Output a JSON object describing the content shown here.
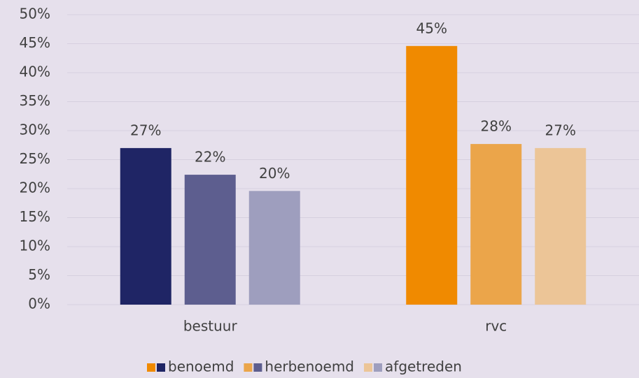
{
  "chart_data": {
    "type": "bar",
    "categories": [
      "bestuur",
      "rvc"
    ],
    "series": [
      {
        "name": "benoemd",
        "colors": [
          "#1f2565",
          "#f08a00"
        ],
        "values": [
          27.0,
          44.6
        ],
        "value_labels": [
          "27%",
          "45%"
        ]
      },
      {
        "name": "herbenoemd",
        "colors": [
          "#5d5e8f",
          "#eba54a"
        ],
        "values": [
          22.4,
          27.7
        ],
        "value_labels": [
          "22%",
          "28%"
        ]
      },
      {
        "name": "afgetreden",
        "colors": [
          "#9e9ebe",
          "#ecc597"
        ],
        "values": [
          19.6,
          27.0
        ],
        "value_labels": [
          "20%",
          "27%"
        ]
      }
    ],
    "ylim": [
      0,
      50
    ],
    "yticks": [
      {
        "value": 0,
        "label": "0%"
      },
      {
        "value": 5,
        "label": "5%"
      },
      {
        "value": 10,
        "label": "10%"
      },
      {
        "value": 15,
        "label": "15%"
      },
      {
        "value": 20,
        "label": "20%"
      },
      {
        "value": 25,
        "label": "25%"
      },
      {
        "value": 30,
        "label": "30%"
      },
      {
        "value": 35,
        "label": "35%"
      },
      {
        "value": 40,
        "label": "40%"
      },
      {
        "value": 45,
        "label": "45%"
      },
      {
        "value": 50,
        "label": "50%"
      }
    ],
    "grid": true
  }
}
